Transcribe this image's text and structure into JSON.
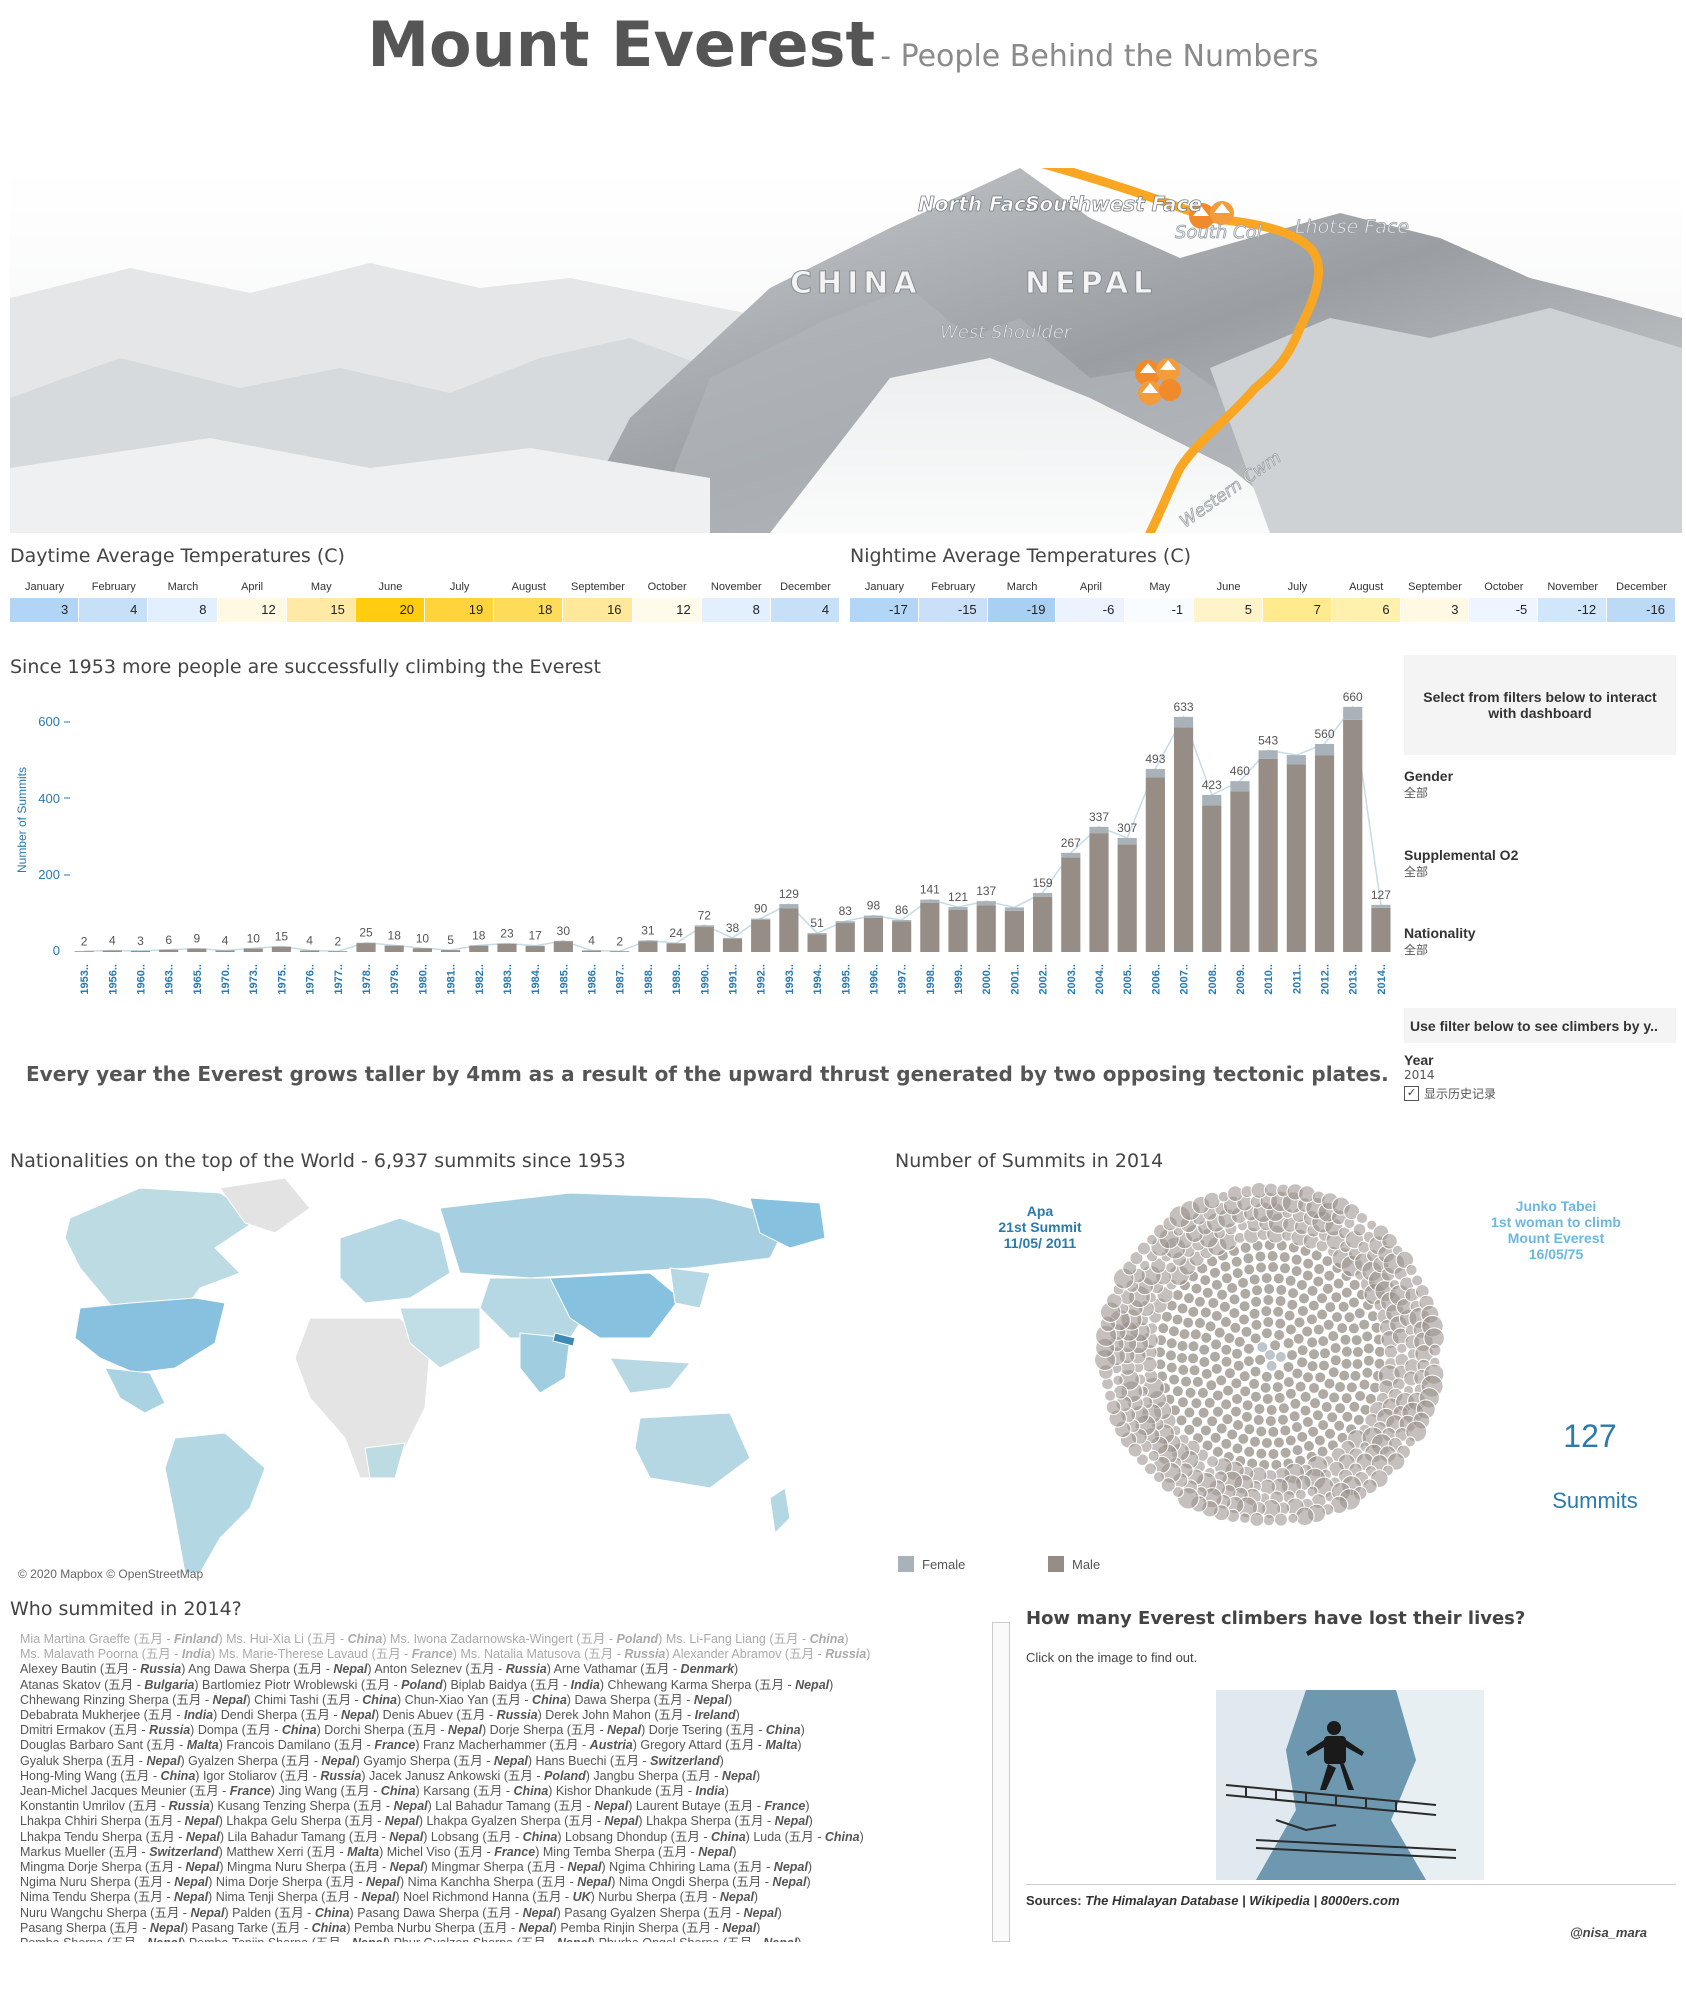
{
  "header": {
    "title": "Mount Everest",
    "subtitle": "- People Behind the Numbers"
  },
  "map_labels": {
    "north_face": "North Face",
    "southwest_face": "Southwest Face",
    "south_col": "South Col",
    "lhotse_face": "Lhotse Face",
    "china": "CHINA",
    "nepal": "NEPAL",
    "west_shoulder": "West Shoulder",
    "western_cwm": "Western Cwm"
  },
  "colors": {
    "bar": "#958d86",
    "bar_cap": "#a8b2b8",
    "line": "#c5dbe8",
    "accent_blue": "#2a7ab0",
    "light_blue": "#6bb8e0"
  },
  "day_temps": {
    "title": "Daytime Average Temperatures (C)",
    "months": [
      "January",
      "February",
      "March",
      "April",
      "May",
      "June",
      "July",
      "August",
      "September",
      "October",
      "November",
      "December"
    ],
    "values": [
      3,
      4,
      8,
      12,
      15,
      20,
      19,
      18,
      16,
      12,
      8,
      4
    ],
    "colors": [
      "#b3d5f5",
      "#c6e0f7",
      "#e3efff",
      "#fff8e3",
      "#ffe9a4",
      "#ffcc10",
      "#ffd33b",
      "#ffdb5a",
      "#ffe89a",
      "#fffae9",
      "#e3efff",
      "#c6e0f7"
    ]
  },
  "night_temps": {
    "title": "Nightime Average Temperatures (C)",
    "months": [
      "January",
      "February",
      "March",
      "April",
      "May",
      "June",
      "July",
      "August",
      "September",
      "October",
      "November",
      "December"
    ],
    "values": [
      -17,
      -15,
      -19,
      -6,
      -1,
      5,
      7,
      6,
      3,
      -5,
      -12,
      -16
    ],
    "colors": [
      "#b4d6f6",
      "#c9e0f8",
      "#a9cff3",
      "#ecf3fe",
      "#f8fbff",
      "#fff3c9",
      "#ffea8e",
      "#fff0ae",
      "#fff8e2",
      "#eef5fe",
      "#d0e6fa",
      "#bcd9f6"
    ]
  },
  "summits_chart": {
    "title": "Since 1953 more people are successfully climbing the Everest",
    "ylabel": "Number of Summits",
    "yticks": [
      "600",
      "400",
      "200",
      "0"
    ]
  },
  "chart_data": {
    "type": "bar",
    "title": "Since 1953 more people are successfully climbing the Everest",
    "ylabel": "Number of Summits",
    "ylim": [
      0,
      700
    ],
    "categories": [
      "1953..",
      "1956..",
      "1960..",
      "1963..",
      "1965..",
      "1970..",
      "1973..",
      "1975..",
      "1976..",
      "1977..",
      "1978..",
      "1979..",
      "1980..",
      "1981..",
      "1982..",
      "1983..",
      "1984..",
      "1985..",
      "1986..",
      "1987..",
      "1988..",
      "1989..",
      "1990..",
      "1991..",
      "1992..",
      "1993..",
      "1994..",
      "1995..",
      "1996..",
      "1997..",
      "1998..",
      "1999..",
      "2000..",
      "2001..",
      "2002..",
      "2003..",
      "2004..",
      "2005..",
      "2006..",
      "2007..",
      "2008..",
      "2009..",
      "2010..",
      "2011..",
      "2012..",
      "2013..",
      "2014.."
    ],
    "values": [
      2,
      4,
      3,
      6,
      9,
      4,
      10,
      15,
      4,
      2,
      25,
      18,
      10,
      5,
      18,
      23,
      17,
      30,
      4,
      2,
      31,
      24,
      72,
      38,
      90,
      129,
      51,
      83,
      98,
      86,
      141,
      121,
      137,
      null,
      159,
      267,
      337,
      307,
      493,
      633,
      423,
      460,
      543,
      null,
      560,
      660,
      127
    ],
    "series": [
      {
        "name": "Male",
        "values": [
          2,
          4,
          3,
          6,
          9,
          4,
          9,
          14,
          4,
          2,
          24,
          17,
          10,
          5,
          17,
          22,
          16,
          29,
          4,
          2,
          29,
          23,
          68,
          36,
          87,
          118,
          48,
          78,
          92,
          82,
          132,
          114,
          126,
          111,
          148,
          255,
          320,
          290,
          470,
          605,
          395,
          432,
          520,
          505,
          530,
          625,
          119
        ]
      },
      {
        "name": "Female",
        "values": [
          0,
          0,
          0,
          0,
          0,
          0,
          1,
          1,
          0,
          0,
          1,
          1,
          0,
          0,
          1,
          1,
          1,
          1,
          0,
          0,
          2,
          1,
          4,
          2,
          3,
          11,
          3,
          5,
          6,
          4,
          9,
          7,
          11,
          9,
          11,
          12,
          17,
          17,
          23,
          28,
          28,
          28,
          23,
          25,
          30,
          35,
          8
        ]
      }
    ]
  },
  "filters": {
    "prompt": "Select from filters below to interact with dashboard",
    "gender_label": "Gender",
    "gender_val": "全部",
    "o2_label": "Supplemental O2",
    "o2_val": "全部",
    "nat_label": "Nationality",
    "nat_val": "全部",
    "year_prompt": "Use filter below to see climbers by y..",
    "year_label": "Year",
    "year_val": "2014",
    "history_label": "显示历史记录"
  },
  "fact": "Every year the Everest grows taller by 4mm as a result of the upward thrust generated by two opposing tectonic plates.",
  "nationalities": {
    "title": "Nationalities on the top of the World - 6,937 summits since 1953",
    "credit": "© 2020 Mapbox © OpenStreetMap"
  },
  "bubbles": {
    "title": "Number of Summits in 2014",
    "apa": [
      "Apa",
      "21st Summit",
      "11/05/ 2011"
    ],
    "junko": [
      "Junko Tabei",
      "1st woman to climb",
      "Mount Everest",
      "16/05/75"
    ],
    "count": "127",
    "count_label": "Summits",
    "legend_female": "Female",
    "legend_male": "Male"
  },
  "who": {
    "title": "Who summited in 2014?",
    "rows": [
      [
        [
          "Mia Martina Graeffe (五月 - ",
          "Finland",
          ")"
        ],
        [
          "Ms. Hui-Xia Li (五月 - ",
          "China",
          ")"
        ],
        [
          "Ms. Iwona Zadarnowska-Wingert (五月 - ",
          "Poland",
          ")"
        ],
        [
          "Ms. Li-Fang Liang (五月 - ",
          "China",
          ")"
        ]
      ],
      [
        [
          "Ms. Malavath Poorna (五月 - ",
          "India",
          ")"
        ],
        [
          "Ms. Marie-Therese Lavaud (五月 - ",
          "France",
          ")"
        ],
        [
          "Ms. Natalia Matusova (五月 - ",
          "Russia",
          ")"
        ],
        [
          "Alexander Abramov (五月 - ",
          "Russia",
          ")"
        ]
      ],
      [
        [
          "Alexey Bautin (五月 - ",
          "Russia",
          ")"
        ],
        [
          "Ang Dawa Sherpa (五月 - ",
          "Nepal",
          ")"
        ],
        [
          "Anton Seleznev (五月 - ",
          "Russia",
          ")"
        ],
        [
          "Arne Vathamar (五月 - ",
          "Denmark",
          ")"
        ]
      ],
      [
        [
          "Atanas Skatov (五月 - ",
          "Bulgaria",
          ")"
        ],
        [
          "Bartlomiez Piotr Wroblewski (五月 - ",
          "Poland",
          ")"
        ],
        [
          "Biplab Baidya (五月 - ",
          "India",
          ")"
        ],
        [
          "Chhewang Karma Sherpa (五月 - ",
          "Nepal",
          ")"
        ]
      ],
      [
        [
          "Chhewang Rinzing Sherpa (五月 - ",
          "Nepal",
          ")"
        ],
        [
          "Chimi Tashi (五月 - ",
          "China",
          ")"
        ],
        [
          "Chun-Xiao Yan (五月 - ",
          "China",
          ")"
        ],
        [
          "Dawa Sherpa (五月 - ",
          "Nepal",
          ")"
        ]
      ],
      [
        [
          "Debabrata Mukherjee (五月 - ",
          "India",
          ")"
        ],
        [
          "Dendi Sherpa (五月 - ",
          "Nepal",
          ")"
        ],
        [
          "Denis Abuev (五月 - ",
          "Russia",
          ")"
        ],
        [
          "Derek John Mahon (五月 - ",
          "Ireland",
          ")"
        ]
      ],
      [
        [
          "Dmitri Ermakov (五月 - ",
          "Russia",
          ")"
        ],
        [
          "Dompa (五月 - ",
          "China",
          ")"
        ],
        [
          "Dorchi Sherpa (五月 - ",
          "Nepal",
          ")"
        ],
        [
          "Dorje Sherpa (五月 - ",
          "Nepal",
          ")"
        ],
        [
          "Dorje Tsering (五月 - ",
          "China",
          ")"
        ]
      ],
      [
        [
          "Douglas Barbaro Sant (五月 - ",
          "Malta",
          ")"
        ],
        [
          "Francois Damilano (五月 - ",
          "France",
          ")"
        ],
        [
          "Franz Macherhammer (五月 - ",
          "Austria",
          ")"
        ],
        [
          "Gregory Attard (五月 - ",
          "Malta",
          ")"
        ]
      ],
      [
        [
          "Gyaluk Sherpa (五月 - ",
          "Nepal",
          ")"
        ],
        [
          "Gyalzen Sherpa (五月 - ",
          "Nepal",
          ")"
        ],
        [
          "Gyamjo Sherpa (五月 - ",
          "Nepal",
          ")"
        ],
        [
          "Hans Buechi (五月 - ",
          "Switzerland",
          ")"
        ]
      ],
      [
        [
          "Hong-Ming Wang (五月 - ",
          "China",
          ")"
        ],
        [
          "Igor Stoliarov (五月 - ",
          "Russia",
          ")"
        ],
        [
          "Jacek Janusz Ankowski (五月 - ",
          "Poland",
          ")"
        ],
        [
          "Jangbu Sherpa (五月 - ",
          "Nepal",
          ")"
        ]
      ],
      [
        [
          "Jean-Michel Jacques Meunier (五月 - ",
          "France",
          ")"
        ],
        [
          "Jing Wang (五月 - ",
          "China",
          ")"
        ],
        [
          "Karsang (五月 - ",
          "China",
          ")"
        ],
        [
          "Kishor Dhankude (五月 - ",
          "India",
          ")"
        ]
      ],
      [
        [
          "Konstantin Umrilov (五月 - ",
          "Russia",
          ")"
        ],
        [
          "Kusang Tenzing Sherpa (五月 - ",
          "Nepal",
          ")"
        ],
        [
          "Lal Bahadur Tamang (五月 - ",
          "Nepal",
          ")"
        ],
        [
          "Laurent Butaye (五月 - ",
          "France",
          ")"
        ]
      ],
      [
        [
          "Lhakpa Chhiri Sherpa (五月 - ",
          "Nepal",
          ")"
        ],
        [
          "Lhakpa Gelu Sherpa (五月 - ",
          "Nepal",
          ")"
        ],
        [
          "Lhakpa Gyalzen Sherpa (五月 - ",
          "Nepal",
          ")"
        ],
        [
          "Lhakpa Sherpa (五月 - ",
          "Nepal",
          ")"
        ]
      ],
      [
        [
          "Lhakpa Tendu Sherpa (五月 - ",
          "Nepal",
          ")"
        ],
        [
          "Lila Bahadur Tamang (五月 - ",
          "Nepal",
          ")"
        ],
        [
          "Lobsang (五月 - ",
          "China",
          ")"
        ],
        [
          "Lobsang Dhondup (五月 - ",
          "China",
          ")"
        ],
        [
          "Luda (五月 - ",
          "China",
          ")"
        ]
      ],
      [
        [
          "Markus Mueller (五月 - ",
          "Switzerland",
          ")"
        ],
        [
          "Matthew Xerri (五月 - ",
          "Malta",
          ")"
        ],
        [
          "Michel Viso (五月 - ",
          "France",
          ")"
        ],
        [
          "Ming Temba Sherpa (五月 - ",
          "Nepal",
          ")"
        ]
      ],
      [
        [
          "Mingma Dorje Sherpa (五月 - ",
          "Nepal",
          ")"
        ],
        [
          "Mingma Nuru Sherpa (五月 - ",
          "Nepal",
          ")"
        ],
        [
          "Mingmar Sherpa (五月 - ",
          "Nepal",
          ")"
        ],
        [
          "Ngima Chhiring Lama (五月 - ",
          "Nepal",
          ")"
        ]
      ],
      [
        [
          "Ngima Nuru Sherpa (五月 - ",
          "Nepal",
          ")"
        ],
        [
          "Nima Dorje Sherpa (五月 - ",
          "Nepal",
          ")"
        ],
        [
          "Nima Kanchha Sherpa (五月 - ",
          "Nepal",
          ")"
        ],
        [
          "Nima Ongdi Sherpa (五月 - ",
          "Nepal",
          ")"
        ]
      ],
      [
        [
          "Nima Tendu Sherpa (五月 - ",
          "Nepal",
          ")"
        ],
        [
          "Nima Tenji Sherpa (五月 - ",
          "Nepal",
          ")"
        ],
        [
          "Noel Richmond Hanna (五月 - ",
          "UK",
          ")"
        ],
        [
          "Nurbu Sherpa (五月 - ",
          "Nepal",
          ")"
        ]
      ],
      [
        [
          "Nuru Wangchu Sherpa (五月 - ",
          "Nepal",
          ")"
        ],
        [
          "Palden (五月 - ",
          "China",
          ")"
        ],
        [
          "Pasang Dawa Sherpa (五月 - ",
          "Nepal",
          ")"
        ],
        [
          "Pasang Gyalzen Sherpa (五月 - ",
          "Nepal",
          ")"
        ]
      ],
      [
        [
          "Pasang Sherpa (五月 - ",
          "Nepal",
          ")"
        ],
        [
          "Pasang Tarke (五月 - ",
          "China",
          ")"
        ],
        [
          "Pemba Nurbu Sherpa (五月 - ",
          "Nepal",
          ")"
        ],
        [
          "Pemba Rinjin Sherpa (五月 - ",
          "Nepal",
          ")"
        ]
      ],
      [
        [
          "Pemba Sherpa (五月 - ",
          "Nepal",
          ")"
        ],
        [
          "Pemba Tenjin Sherpa (五月 - ",
          "Nepal",
          ")"
        ],
        [
          "Phur Gyalzen Sherpa (五月 - ",
          "Nepal",
          ")"
        ],
        [
          "Phurba Ongel Sherpa (五月 - ",
          "Nepal",
          ")"
        ]
      ]
    ]
  },
  "deaths": {
    "title": "How many Everest climbers have lost their lives?",
    "instruction": "Click on the image to find out.",
    "sources_label": "Sources:",
    "sources": "The Himalayan Database | Wikipedia | 8000ers.com",
    "handle": "@nisa_mara"
  }
}
